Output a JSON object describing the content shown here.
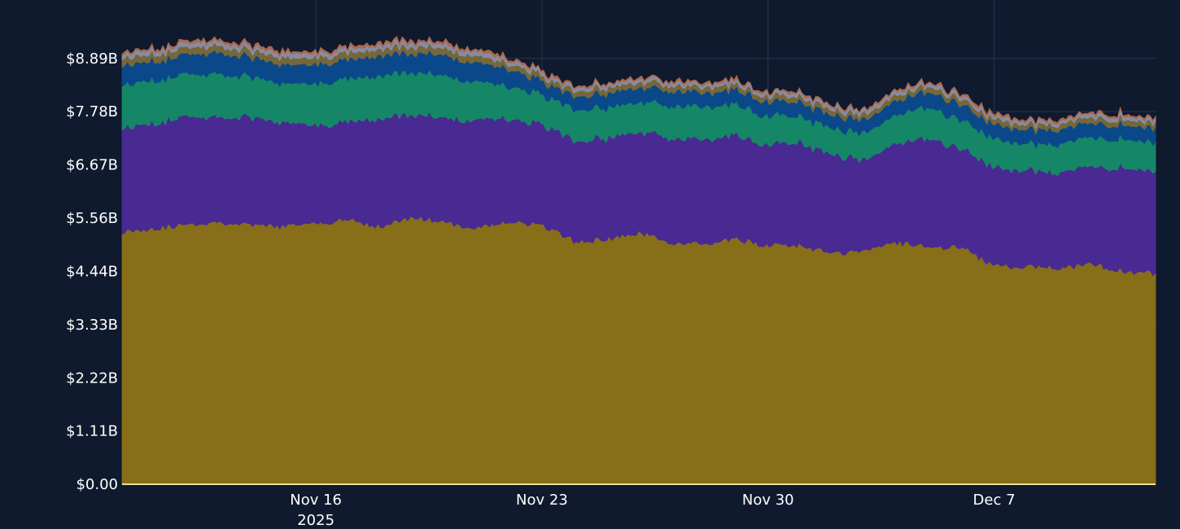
{
  "chart_data": {
    "type": "area",
    "stacked": true,
    "title": "",
    "xlabel": "",
    "ylabel": "",
    "x_range": [
      "2025-11-10",
      "2025-12-12"
    ],
    "ylim": [
      0,
      9600000000
    ],
    "y_ticks": [
      0,
      1110000000,
      2220000000,
      3330000000,
      4440000000,
      5560000000,
      6670000000,
      7780000000,
      8890000000
    ],
    "y_tick_labels": [
      "$0.00",
      "$1.11B",
      "$2.22B",
      "$3.33B",
      "$4.44B",
      "$5.56B",
      "$6.67B",
      "$7.78B",
      "$8.89B"
    ],
    "x_ticks": [
      "2025-11-16",
      "2025-11-23",
      "2025-11-30",
      "2025-12-07"
    ],
    "x_tick_labels": [
      "Nov 16",
      "Nov 23",
      "Nov 30",
      "Dec 7"
    ],
    "x_year_label": "2025",
    "grid": true,
    "legend": "none",
    "background": "#0f1a2e",
    "x": [
      "2025-11-10",
      "2025-11-11",
      "2025-11-12",
      "2025-11-13",
      "2025-11-14",
      "2025-11-15",
      "2025-11-16",
      "2025-11-17",
      "2025-11-18",
      "2025-11-19",
      "2025-11-20",
      "2025-11-21",
      "2025-11-22",
      "2025-11-23",
      "2025-11-24",
      "2025-11-25",
      "2025-11-26",
      "2025-11-27",
      "2025-11-28",
      "2025-11-29",
      "2025-11-30",
      "2025-12-01",
      "2025-12-02",
      "2025-12-03",
      "2025-12-04",
      "2025-12-05",
      "2025-12-06",
      "2025-12-07",
      "2025-12-08",
      "2025-12-09",
      "2025-12-10",
      "2025-12-11",
      "2025-12-12"
    ],
    "series": [
      {
        "color": "#8a7318",
        "values": [
          5.28,
          5.35,
          5.42,
          5.48,
          5.4,
          5.38,
          5.45,
          5.52,
          5.38,
          5.58,
          5.46,
          5.35,
          5.5,
          5.4,
          5.08,
          5.1,
          5.25,
          5.05,
          5.0,
          5.12,
          4.98,
          5.0,
          4.8,
          4.9,
          5.05,
          4.95,
          4.95,
          4.55,
          4.55,
          4.5,
          4.6,
          4.45,
          4.4
        ]
      },
      {
        "color": "#4b2a96",
        "values": [
          2.15,
          2.2,
          2.25,
          2.2,
          2.25,
          2.15,
          2.05,
          2.05,
          2.25,
          2.15,
          2.18,
          2.25,
          2.15,
          2.1,
          2.1,
          2.1,
          2.1,
          2.2,
          2.2,
          2.15,
          2.1,
          2.15,
          2.05,
          1.9,
          2.05,
          2.25,
          2.05,
          2.05,
          2.0,
          2.0,
          2.05,
          2.15,
          2.15
        ]
      },
      {
        "color": "#168a68",
        "values": [
          0.9,
          0.9,
          0.88,
          0.9,
          0.85,
          0.8,
          0.88,
          0.9,
          0.9,
          0.88,
          0.88,
          0.8,
          0.68,
          0.62,
          0.65,
          0.64,
          0.62,
          0.68,
          0.68,
          0.65,
          0.6,
          0.55,
          0.55,
          0.55,
          0.6,
          0.65,
          0.6,
          0.6,
          0.55,
          0.6,
          0.6,
          0.6,
          0.6
        ]
      },
      {
        "color": "#0a4a8c",
        "values": [
          0.42,
          0.4,
          0.42,
          0.44,
          0.4,
          0.4,
          0.4,
          0.4,
          0.42,
          0.4,
          0.42,
          0.4,
          0.36,
          0.28,
          0.28,
          0.3,
          0.3,
          0.32,
          0.3,
          0.3,
          0.3,
          0.3,
          0.28,
          0.28,
          0.3,
          0.32,
          0.32,
          0.3,
          0.3,
          0.3,
          0.3,
          0.3,
          0.3
        ]
      },
      {
        "color": "#7a6a3a",
        "values": [
          0.14,
          0.14,
          0.14,
          0.14,
          0.14,
          0.14,
          0.14,
          0.14,
          0.14,
          0.14,
          0.14,
          0.14,
          0.12,
          0.11,
          0.11,
          0.11,
          0.11,
          0.11,
          0.11,
          0.11,
          0.11,
          0.11,
          0.11,
          0.11,
          0.11,
          0.11,
          0.11,
          0.11,
          0.11,
          0.11,
          0.11,
          0.11,
          0.11
        ]
      },
      {
        "color": "#8a8fa8",
        "values": [
          0.09,
          0.09,
          0.09,
          0.09,
          0.09,
          0.09,
          0.09,
          0.09,
          0.09,
          0.09,
          0.09,
          0.09,
          0.08,
          0.07,
          0.07,
          0.07,
          0.07,
          0.07,
          0.07,
          0.07,
          0.07,
          0.07,
          0.07,
          0.07,
          0.07,
          0.07,
          0.07,
          0.07,
          0.07,
          0.07,
          0.07,
          0.07,
          0.07
        ]
      },
      {
        "color": "#b06a4a",
        "values": [
          0.04,
          0.04,
          0.04,
          0.04,
          0.04,
          0.04,
          0.04,
          0.04,
          0.04,
          0.04,
          0.04,
          0.04,
          0.04,
          0.03,
          0.03,
          0.03,
          0.03,
          0.03,
          0.03,
          0.03,
          0.03,
          0.03,
          0.03,
          0.03,
          0.03,
          0.03,
          0.03,
          0.03,
          0.03,
          0.03,
          0.03,
          0.03,
          0.03
        ]
      }
    ],
    "value_unit": "B"
  }
}
